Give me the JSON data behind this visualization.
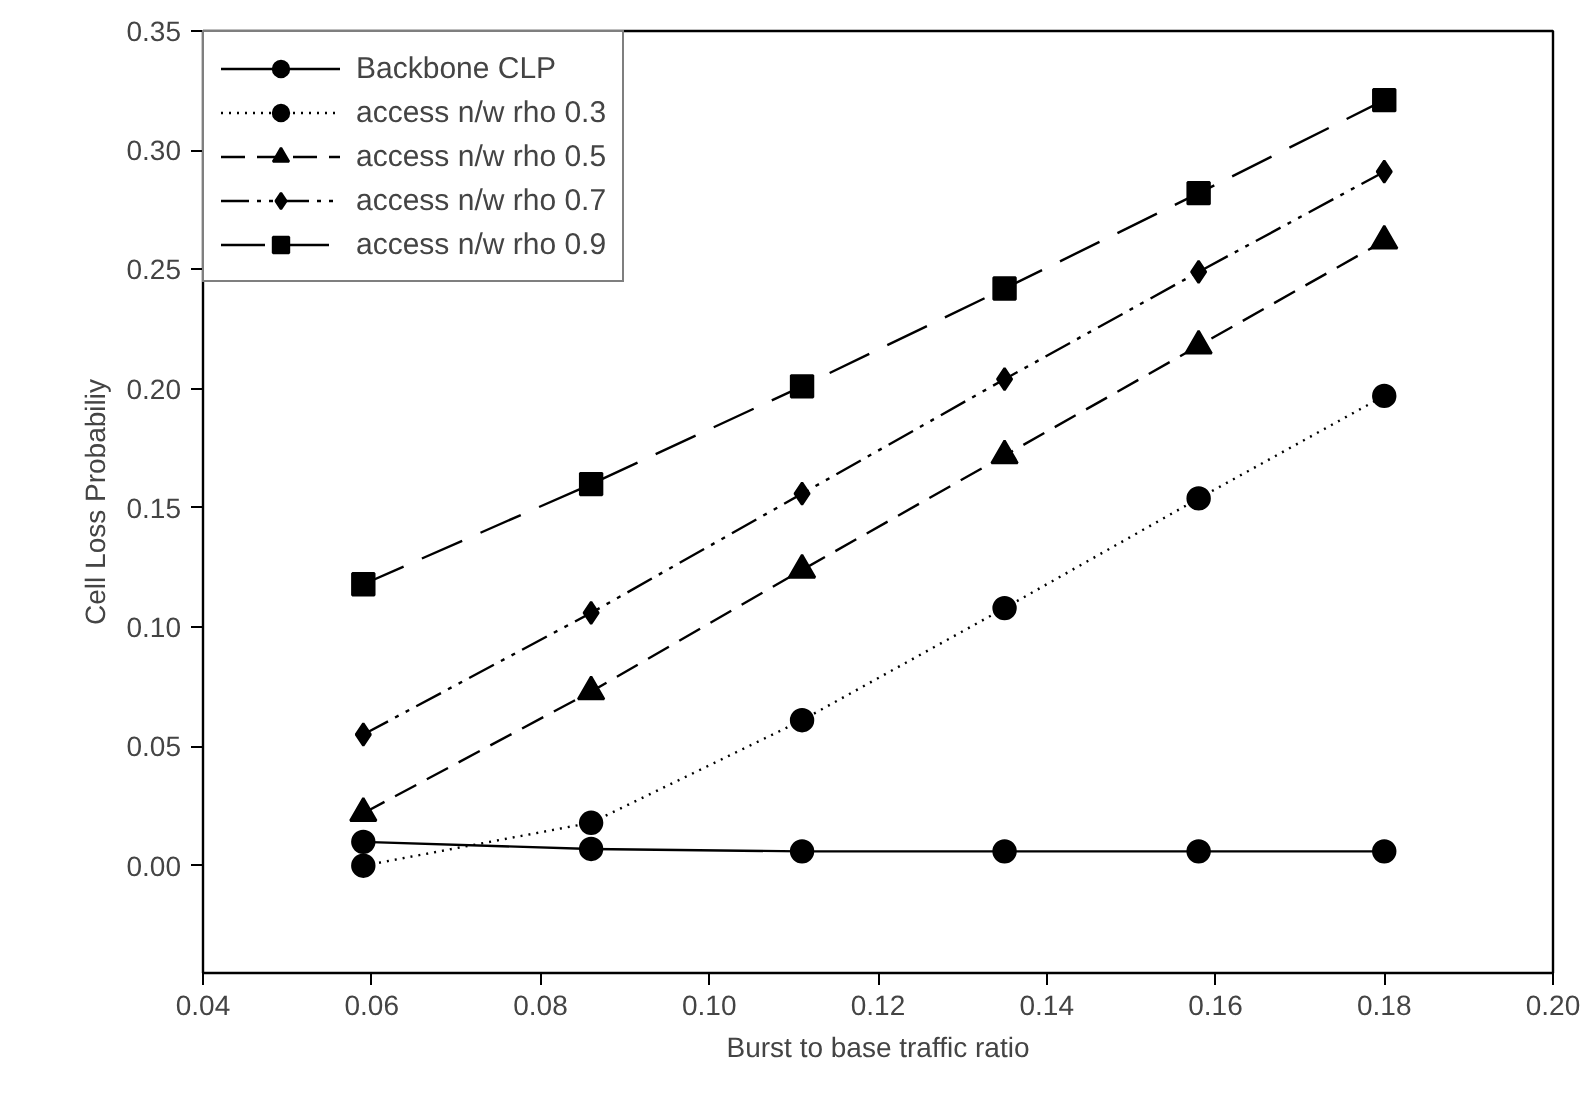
{
  "chart_data": {
    "type": "line",
    "xlabel": "Burst to base traffic ratio",
    "ylabel": "Cell Loss Probabiliy",
    "x": [
      0.059,
      0.086,
      0.111,
      0.135,
      0.158,
      0.18
    ],
    "series": [
      {
        "name": "Backbone CLP",
        "color": "#000000",
        "marker": "circle",
        "line_style": "solid",
        "values": [
          0.01,
          0.007,
          0.006,
          0.006,
          0.006,
          0.006
        ]
      },
      {
        "name": "access n/w rho 0.3",
        "color": "#000000",
        "marker": "circle",
        "line_style": "dotted",
        "values": [
          0.0,
          0.018,
          0.061,
          0.108,
          0.154,
          0.197
        ]
      },
      {
        "name": "access n/w rho 0.5",
        "color": "#000000",
        "marker": "triangle",
        "line_style": "dashed",
        "values": [
          0.022,
          0.073,
          0.124,
          0.172,
          0.218,
          0.262
        ]
      },
      {
        "name": "access n/w rho 0.7",
        "color": "#000000",
        "marker": "diamond",
        "line_style": "dashdot",
        "values": [
          0.055,
          0.106,
          0.156,
          0.204,
          0.249,
          0.291
        ]
      },
      {
        "name": "access n/w rho 0.9",
        "color": "#000000",
        "marker": "square",
        "line_style": "longdash",
        "values": [
          0.118,
          0.16,
          0.201,
          0.242,
          0.282,
          0.321
        ]
      }
    ],
    "xlim": [
      0.04,
      0.2
    ],
    "ylim": [
      -0.045,
      0.35
    ],
    "xticks": [
      {
        "value": 0.04,
        "label": "0.04"
      },
      {
        "value": 0.06,
        "label": "0.06"
      },
      {
        "value": 0.08,
        "label": "0.08"
      },
      {
        "value": 0.1,
        "label": "0.10"
      },
      {
        "value": 0.12,
        "label": "0.12"
      },
      {
        "value": 0.14,
        "label": "0.14"
      },
      {
        "value": 0.16,
        "label": "0.16"
      },
      {
        "value": 0.18,
        "label": "0.18"
      },
      {
        "value": 0.2,
        "label": "0.20"
      }
    ],
    "yticks": [
      {
        "value": 0,
        "label": "0.00"
      },
      {
        "value": 0.05,
        "label": "0.05"
      },
      {
        "value": 0.1,
        "label": "0.10"
      },
      {
        "value": 0.15,
        "label": "0.15"
      },
      {
        "value": 0.2,
        "label": "0.20"
      },
      {
        "value": 0.25,
        "label": "0.25"
      },
      {
        "value": 0.3,
        "label": "0.30"
      },
      {
        "value": 0.35,
        "label": "0.35"
      }
    ],
    "grid": false,
    "legend": "top left"
  }
}
